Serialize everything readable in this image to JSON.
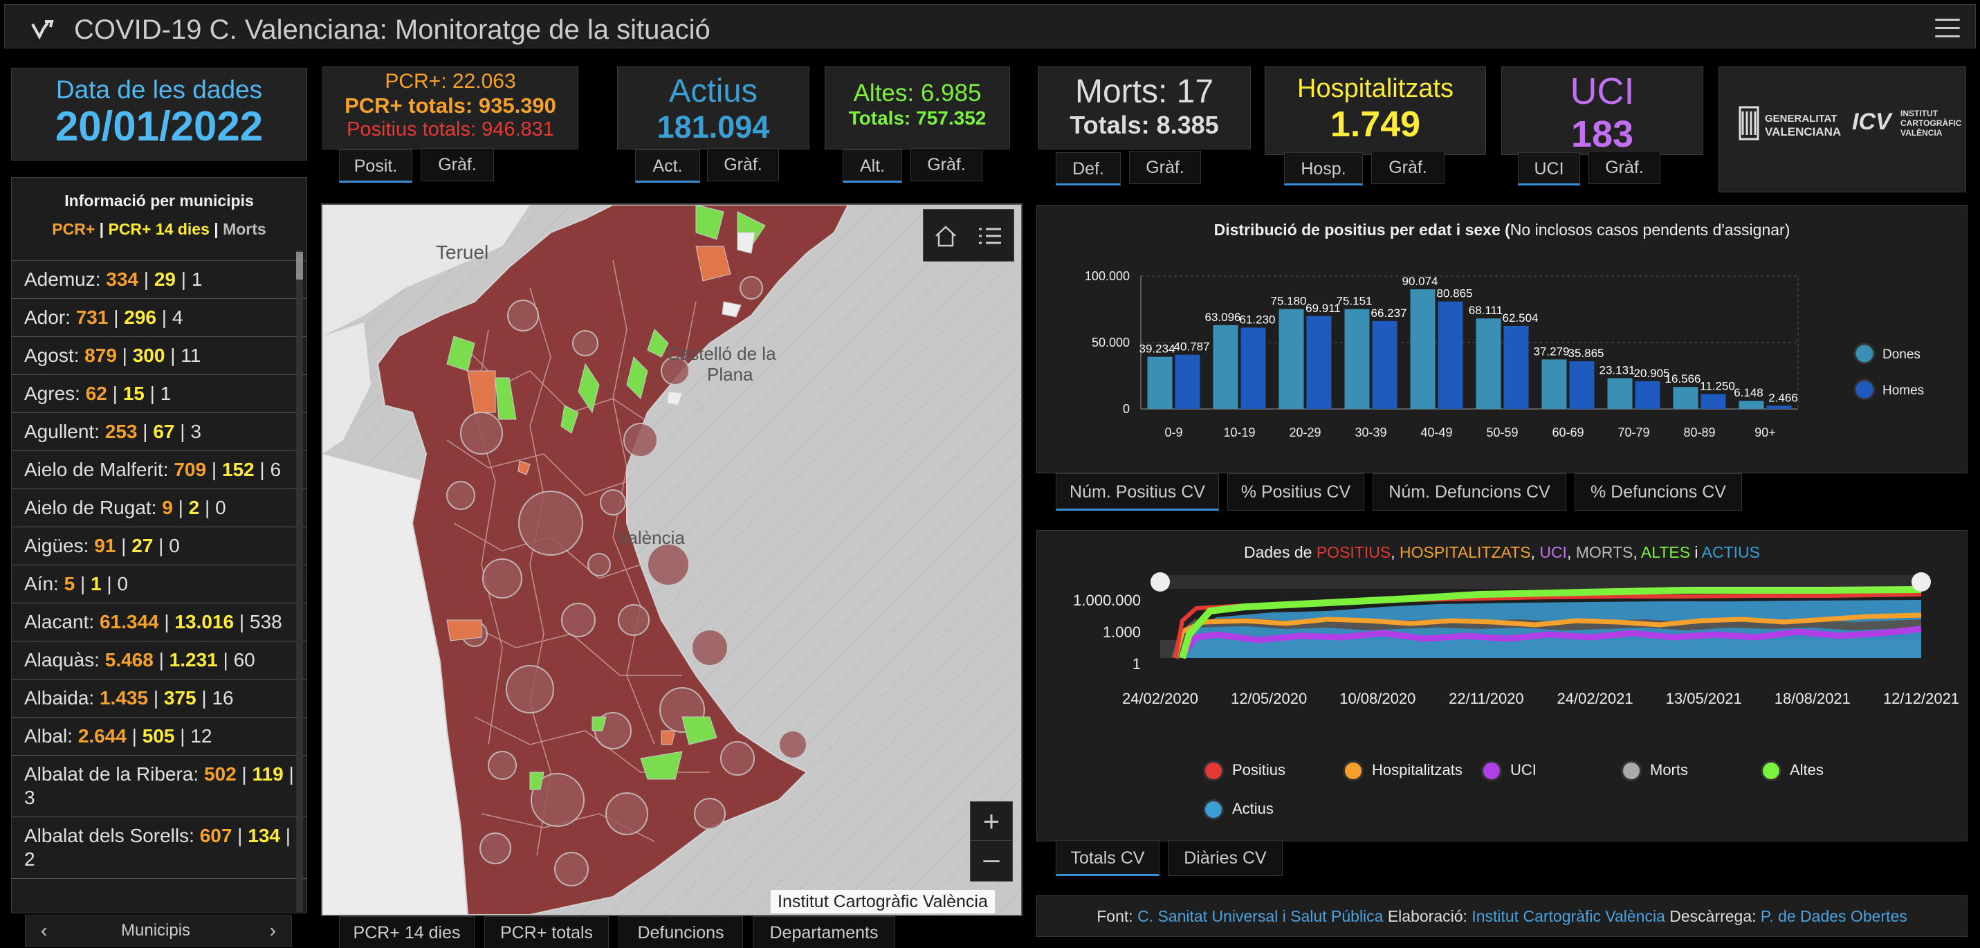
{
  "header": {
    "title": "COVID-19 C. Valenciana: Monitoratge de la situació"
  },
  "date_card": {
    "label": "Data de les dades",
    "value": "20/01/2022"
  },
  "pcr_card": {
    "line1": "PCR+: 22.063",
    "line2": "PCR+ totals: 935.390",
    "line3": "Positius totals: 946.831",
    "tab1": "Posit.",
    "tab2": "Gràf."
  },
  "actius_card": {
    "label": "Actius",
    "value": "181.094",
    "tab1": "Act.",
    "tab2": "Gràf."
  },
  "altes_card": {
    "line1": "Altes: 6.985",
    "line2": "Totals: 757.352",
    "tab1": "Alt.",
    "tab2": "Gràf."
  },
  "morts_card": {
    "line1": "Morts: 17",
    "line2": "Totals: 8.385",
    "tab1": "Def.",
    "tab2": "Gràf."
  },
  "hosp_card": {
    "label": "Hospitalitzats",
    "value": "1.749",
    "tab1": "Hosp.",
    "tab2": "Gràf."
  },
  "uci_card": {
    "label": "UCI",
    "value": "183",
    "tab1": "UCI",
    "tab2": "Gràf."
  },
  "logos": {
    "gva_line1": "GENERALITAT",
    "gva_line2": "VALENCIANA",
    "icv_line1": "INSTITUT",
    "icv_line2": "CARTOGRÀFIC",
    "icv_line3": "VALÈNCIA",
    "icv_mark": "ICV"
  },
  "muni_panel": {
    "title": "Informació per municipis",
    "legend_a": "PCR+",
    "legend_sep1": " | ",
    "legend_b": "PCR+ 14 dies",
    "legend_sep2": " | ",
    "legend_c": "Morts",
    "items": [
      {
        "name": "Ademuz:",
        "a": "334",
        "b": "29",
        "c": "1"
      },
      {
        "name": "Ador:",
        "a": "731",
        "b": "296",
        "c": "4"
      },
      {
        "name": "Agost:",
        "a": "879",
        "b": "300",
        "c": "11"
      },
      {
        "name": "Agres:",
        "a": "62",
        "b": "15",
        "c": "1"
      },
      {
        "name": "Agullent:",
        "a": "253",
        "b": "67",
        "c": "3"
      },
      {
        "name": "Aielo de Malferit:",
        "a": "709",
        "b": "152",
        "c": "6"
      },
      {
        "name": "Aielo de Rugat:",
        "a": "9",
        "b": "2",
        "c": "0"
      },
      {
        "name": "Aigües:",
        "a": "91",
        "b": "27",
        "c": "0"
      },
      {
        "name": "Aín:",
        "a": "5",
        "b": "1",
        "c": "0"
      },
      {
        "name": "Alacant:",
        "a": "61.344",
        "b": "13.016",
        "c": "538"
      },
      {
        "name": "Alaquàs:",
        "a": "5.468",
        "b": "1.231",
        "c": "60"
      },
      {
        "name": "Albaida:",
        "a": "1.435",
        "b": "375",
        "c": "16"
      },
      {
        "name": "Albal:",
        "a": "2.644",
        "b": "505",
        "c": "12"
      },
      {
        "name": "Albalat de la Ribera:",
        "a": "502",
        "b": "119",
        "c": "3"
      },
      {
        "name": "Albalat dels Sorells:",
        "a": "607",
        "b": "134",
        "c": "2"
      }
    ],
    "pager_label": "Municipis"
  },
  "map": {
    "label_teruel": "Teruel",
    "label_castello_1": "Castelló de la",
    "label_castello_2": "Plana",
    "label_valencia": "València",
    "attribution": "Institut Cartogràfic València",
    "tabs": [
      "PCR+ 14 dies",
      "PCR+ totals",
      "Defuncions",
      "Departaments"
    ]
  },
  "chart1": {
    "title_bold": "Distribució de positius per edat i sexe (",
    "title_rest": "No inclosos casos pendents d'assignar)",
    "tabs": [
      "Núm. Positius CV",
      "% Positius CV",
      "Núm. Defuncions CV",
      "% Defuncions CV"
    ]
  },
  "chart2": {
    "title_prefix": "Dades de ",
    "w1": "POSITIUS",
    "w2": "HOSPITALITZATS",
    "w3": "UCI",
    "w4": "MORTS",
    "w5": "ALTES",
    "w6": "ACTIUS",
    "i_word": " i ",
    "sep": ", ",
    "y_ticks": [
      "1.000.000",
      "1.000",
      "1"
    ],
    "x_ticks": [
      "24/02/2020",
      "12/05/2020",
      "10/08/2020",
      "22/11/2020",
      "24/02/2021",
      "13/05/2021",
      "18/08/2021",
      "12/12/2021"
    ],
    "legend": [
      "Positius",
      "Hospitalitzats",
      "UCI",
      "Morts",
      "Altes",
      "Actius"
    ],
    "tabs": [
      "Totals CV",
      "Diàries CV"
    ]
  },
  "footer": {
    "font_label": "Font:",
    "font_link": "C. Sanitat Universal i Salut Pública",
    "elab_label": "Elaboració:",
    "elab_link": "Institut Cartogràfic València",
    "desc_label": "Descàrrega:",
    "desc_link": "P. de Dades Obertes"
  },
  "colors": {
    "positius": "#e53935",
    "hospitalitzats": "#f5a12b",
    "uci": "#b03fe8",
    "morts": "#aaaaaa",
    "altes": "#7cf23d",
    "actius": "#3b9fd6",
    "dones": "#3a8fb5",
    "homes": "#1f5bbf"
  },
  "chart_data": {
    "type": "bar",
    "title": "Distribució de positius per edat i sexe (No inclosos casos pendents d'assignar)",
    "categories": [
      "0-9",
      "10-19",
      "20-29",
      "30-39",
      "40-49",
      "50-59",
      "60-69",
      "70-79",
      "80-89",
      "90+"
    ],
    "series": [
      {
        "name": "Dones",
        "values": [
          39234,
          63096,
          75180,
          75151,
          90074,
          68111,
          37279,
          23131,
          16566,
          6148
        ]
      },
      {
        "name": "Homes",
        "values": [
          40787,
          61230,
          69911,
          66237,
          80865,
          62504,
          35865,
          20905,
          11250,
          2466
        ]
      }
    ],
    "value_labels": {
      "Dones": [
        "39.234",
        "63.096",
        "75.180",
        "75.151",
        "90.074",
        "68.111",
        "37.279",
        "23.131",
        "16.566",
        "6.148"
      ],
      "Homes": [
        "40.787",
        "61.230",
        "69.911",
        "66.237",
        "80.865",
        "62.504",
        "35.865",
        "20.905",
        "11.250",
        "2.466"
      ]
    },
    "y_ticks": [
      "100.000",
      "50.000",
      "0"
    ],
    "ylim": [
      0,
      100000
    ],
    "legend_position": "right"
  }
}
